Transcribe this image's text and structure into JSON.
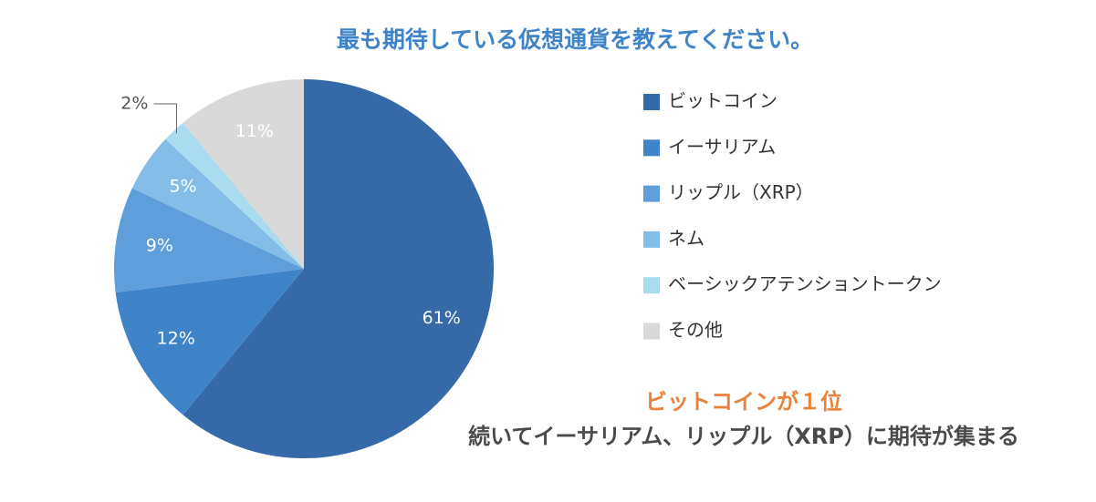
{
  "chart_data": {
    "type": "pie",
    "title": "最も期待している仮想通貨を教えてください。",
    "categories": [
      "ビットコイン",
      "イーサリアム",
      "リップル（XRP）",
      "ネム",
      "ベーシックアテンショントークン",
      "その他"
    ],
    "values": [
      61,
      12,
      9,
      5,
      2,
      11
    ],
    "value_labels": [
      "61%",
      "12%",
      "9%",
      "5%",
      "2%",
      "11%"
    ],
    "colors": [
      "#3569a8",
      "#3f84c8",
      "#5e9fdb",
      "#84bde8",
      "#a9dcef",
      "#d9d9d9"
    ],
    "legend": "right",
    "annotations": [
      "ビットコインが１位",
      "続いてイーサリアム、リップル（XRP）に期待が集まる"
    ]
  }
}
